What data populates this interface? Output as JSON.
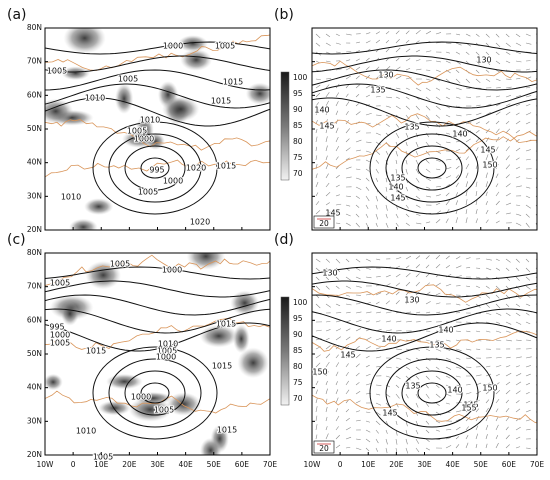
{
  "lat_labels": [
    "80N",
    "70N",
    "60N",
    "50N",
    "40N",
    "30N",
    "20N"
  ],
  "lon_labels": [
    "10W",
    "0",
    "10E",
    "20E",
    "30E",
    "40E",
    "50E",
    "60E",
    "70E"
  ],
  "colorbar_labels": [
    "100",
    "95",
    "90",
    "85",
    "80",
    "75",
    "70"
  ],
  "vector_scale": "20",
  "panels": [
    {
      "label": "(a)",
      "contour_labels": [
        "1000",
        "1005",
        "1005",
        "1005",
        "1015",
        "1010",
        "1015",
        "1010",
        "1005",
        "1000",
        "995",
        "1020",
        "1015",
        "1000",
        "1005",
        "1010",
        "1020"
      ]
    },
    {
      "label": "(b)",
      "contour_labels": [
        "130",
        "130",
        "135",
        "140",
        "145",
        "135",
        "140",
        "145",
        "150",
        "135",
        "140",
        "145",
        "145"
      ]
    },
    {
      "label": "(c)",
      "contour_labels": [
        "1005",
        "1000",
        "1005",
        "995",
        "1000",
        "1005",
        "1015",
        "1015",
        "1010",
        "1005",
        "1000",
        "1015",
        "1000",
        "1005",
        "1010",
        "1015",
        "1005"
      ]
    },
    {
      "label": "(d)",
      "contour_labels": [
        "130",
        "130",
        "140",
        "135",
        "145",
        "140",
        "150",
        "135",
        "140",
        "150",
        "145",
        "145",
        "155"
      ]
    }
  ]
}
